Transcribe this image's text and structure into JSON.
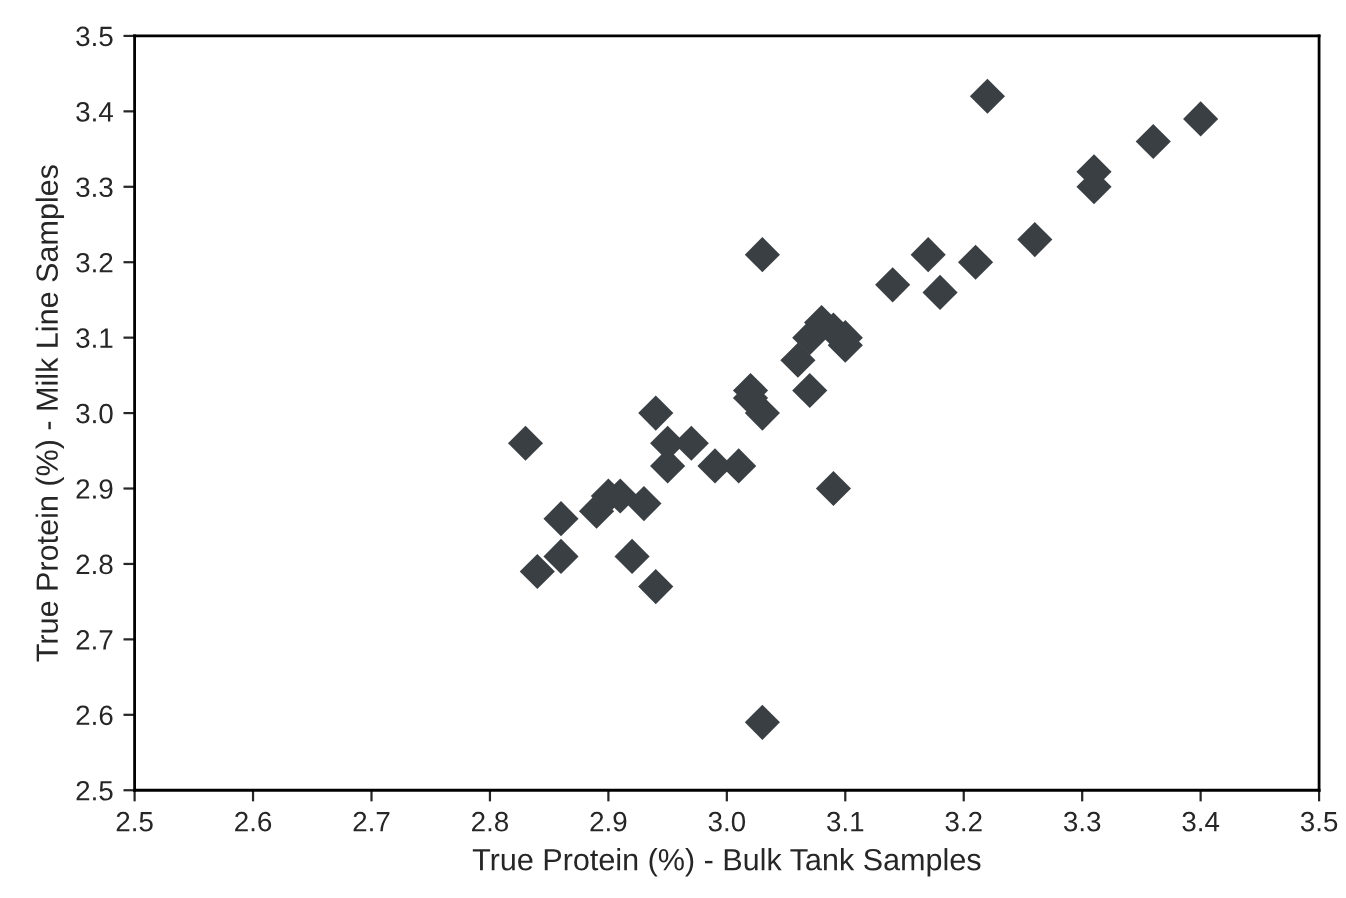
{
  "chart_data": {
    "type": "scatter",
    "xlabel": "True Protein (%) - Bulk Tank Samples",
    "ylabel": "True Protein (%) - Milk Line Samples",
    "x": [
      2.83,
      2.84,
      2.86,
      2.86,
      2.89,
      2.9,
      2.91,
      2.92,
      2.93,
      2.94,
      2.94,
      2.95,
      2.95,
      2.97,
      2.99,
      3.01,
      3.02,
      3.02,
      3.03,
      3.03,
      3.03,
      3.06,
      3.07,
      3.07,
      3.08,
      3.09,
      3.1,
      3.1,
      3.09,
      3.14,
      3.17,
      3.18,
      3.21,
      3.22,
      3.26,
      3.31,
      3.31,
      3.36,
      3.4
    ],
    "series": [
      {
        "color": "#3a3f44",
        "values": [
          2.96,
          2.79,
          2.81,
          2.86,
          2.87,
          2.89,
          2.89,
          2.81,
          2.88,
          3.0,
          2.77,
          2.93,
          2.96,
          2.96,
          2.93,
          2.93,
          3.03,
          3.02,
          3.0,
          3.21,
          2.59,
          3.07,
          3.03,
          3.1,
          3.12,
          3.11,
          3.09,
          3.1,
          2.9,
          3.17,
          3.21,
          3.16,
          3.2,
          3.42,
          3.23,
          3.3,
          3.32,
          3.36,
          3.39
        ]
      }
    ],
    "xlim": [
      2.5,
      3.5
    ],
    "ylim": [
      2.5,
      3.5
    ],
    "xticks": [
      2.5,
      2.6,
      2.7,
      2.8,
      2.9,
      {
        "value": 3,
        "label": "3.0"
      },
      3.1,
      3.2,
      3.3,
      3.4,
      3.5
    ],
    "yticks": [
      2.5,
      2.6,
      2.7,
      2.8,
      2.9,
      {
        "value": 3,
        "label": "3.0"
      },
      3.1,
      3.2,
      3.3,
      3.4,
      3.5
    ],
    "marker": "diamond",
    "grid": false,
    "legend": false
  }
}
